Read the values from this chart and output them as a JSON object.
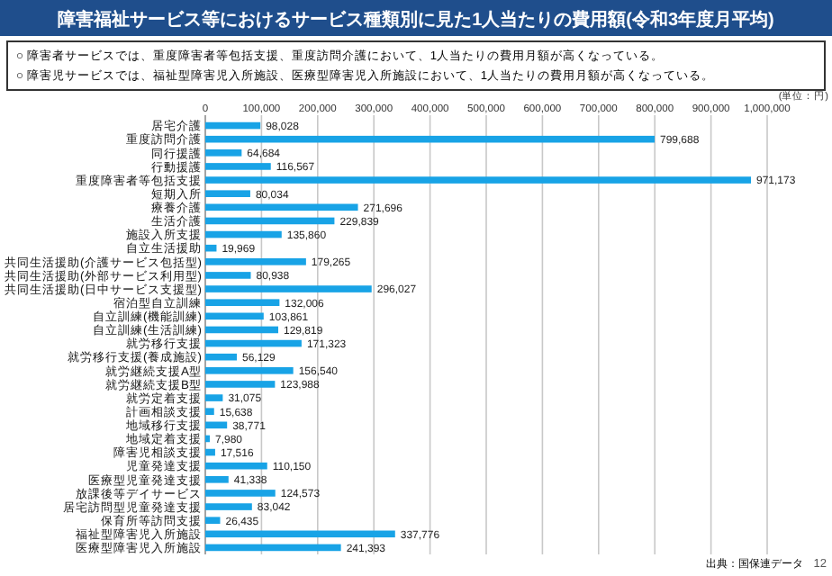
{
  "chart_data": {
    "type": "bar",
    "orientation": "horizontal",
    "title": "障害福祉サービス等におけるサービス種類別に見た1人当たりの費用額(令和3年度月平均)",
    "annotations": [
      "○ 障害者サービスでは、重度障害者等包括支援、重度訪問介護において、1人当たりの費用月額が高くなっている。",
      "○ 障害児サービスでは、福祉型障害児入所施設、医療型障害児入所施設において、1人当たりの費用月額が高くなっている。",
      "(単位：円)",
      "出典：国保連データ",
      "12"
    ],
    "categories": [
      "居宅介護",
      "重度訪問介護",
      "同行援護",
      "行動援護",
      "重度障害者等包括支援",
      "短期入所",
      "療養介護",
      "生活介護",
      "施設入所支援",
      "自立生活援助",
      "共同生活援助(介護サービス包括型)",
      "共同生活援助(外部サービス利用型)",
      "共同生活援助(日中サービス支援型)",
      "宿泊型自立訓練",
      "自立訓練(機能訓練)",
      "自立訓練(生活訓練)",
      "就労移行支援",
      "就労移行支援(養成施設)",
      "就労継続支援A型",
      "就労継続支援B型",
      "就労定着支援",
      "計画相談支援",
      "地域移行支援",
      "地域定着支援",
      "障害児相談支援",
      "児童発達支援",
      "医療型児童発達支援",
      "放課後等デイサービス",
      "居宅訪問型児童発達支援",
      "保育所等訪問支援",
      "福祉型障害児入所施設",
      "医療型障害児入所施設"
    ],
    "values": [
      98028,
      799688,
      64684,
      116567,
      971173,
      80034,
      271696,
      229839,
      135860,
      19969,
      179265,
      80938,
      296027,
      132006,
      103861,
      129819,
      171323,
      56129,
      156540,
      123988,
      31075,
      15638,
      38771,
      7980,
      17516,
      110150,
      41338,
      124573,
      83042,
      26435,
      337776,
      241393
    ],
    "color": "#18a3e6",
    "xlim": [
      0,
      1000000
    ],
    "xticks": [
      0,
      {
        "value": 100000,
        "label": "100,000"
      },
      {
        "value": 200000,
        "label": "200,000"
      },
      {
        "value": 300000,
        "label": "300,000"
      },
      {
        "value": 400000,
        "label": "400,000"
      },
      {
        "value": 500000,
        "label": "500,000"
      },
      {
        "value": 600000,
        "label": "600,000"
      },
      {
        "value": 700000,
        "label": "700,000"
      },
      {
        "value": 800000,
        "label": "800,000"
      },
      {
        "value": 900000,
        "label": "900,000"
      },
      {
        "value": 1000000,
        "label": "1,000,000"
      }
    ],
    "grid": "x",
    "value_labels": [
      "98,028",
      "799,688",
      "64,684",
      "116,567",
      "971,173",
      "80,034",
      "271,696",
      "229,839",
      "135,860",
      "19,969",
      "179,265",
      "80,938",
      "296,027",
      "132,006",
      "103,861",
      "129,819",
      "171,323",
      "56,129",
      "156,540",
      "123,988",
      "31,075",
      "15,638",
      "38,771",
      "7,980",
      "17,516",
      "110,150",
      "41,338",
      "124,573",
      "83,042",
      "26,435",
      "337,776",
      "241,393"
    ]
  }
}
